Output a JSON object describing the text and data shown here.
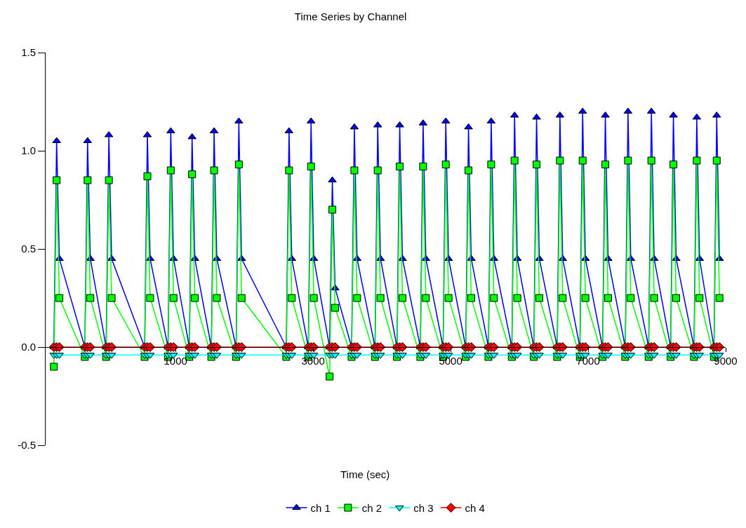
{
  "chart_data": {
    "type": "line",
    "title": "Time Series by Channel",
    "xlabel": "Time (sec)",
    "x": [
      -770,
      -730,
      -690,
      -320,
      -280,
      -240,
      -10,
      30,
      70,
      550,
      590,
      630,
      890,
      930,
      970,
      1200,
      1240,
      1280,
      1520,
      1560,
      1600,
      1880,
      1920,
      1960,
      2610,
      2650,
      2690,
      2930,
      2970,
      3010,
      3240,
      3280,
      3320,
      3560,
      3600,
      3640,
      3900,
      3940,
      3980,
      4220,
      4260,
      4300,
      4560,
      4600,
      4640,
      4890,
      4930,
      4970,
      5220,
      5260,
      5300,
      5550,
      5590,
      5630,
      5890,
      5930,
      5970,
      6210,
      6250,
      6290,
      6550,
      6590,
      6630,
      6880,
      6920,
      6960,
      7210,
      7250,
      7290,
      7540,
      7580,
      7620,
      7880,
      7920,
      7960,
      8200,
      8240,
      8280,
      8540,
      8580,
      8620,
      8830,
      8870,
      8910
    ],
    "series": [
      {
        "name": "ch 1",
        "color": "#0000ff",
        "marker": "triangle",
        "values": [
          0,
          1.05,
          0.45,
          0,
          1.05,
          0.45,
          0,
          1.08,
          0.45,
          0,
          1.08,
          0.45,
          0,
          1.1,
          0.45,
          0,
          1.07,
          0.45,
          0,
          1.1,
          0.45,
          0,
          1.15,
          0.45,
          0,
          1.1,
          0.45,
          0,
          1.15,
          0.45,
          0,
          0.85,
          0.3,
          0,
          1.12,
          0.45,
          0,
          1.13,
          0.45,
          0,
          1.13,
          0.45,
          0,
          1.14,
          0.45,
          0,
          1.15,
          0.45,
          0,
          1.12,
          0.45,
          0,
          1.15,
          0.45,
          0,
          1.18,
          0.45,
          0,
          1.17,
          0.45,
          0,
          1.18,
          0.45,
          0,
          1.2,
          0.45,
          0,
          1.18,
          0.45,
          0,
          1.2,
          0.45,
          0,
          1.2,
          0.45,
          0,
          1.18,
          0.45,
          0,
          1.17,
          0.45,
          0,
          1.18,
          0.45
        ]
      },
      {
        "name": "ch 2",
        "color": "#00ff00",
        "marker": "square",
        "values": [
          -0.1,
          0.85,
          0.25,
          -0.05,
          0.85,
          0.25,
          -0.05,
          0.85,
          0.25,
          -0.05,
          0.87,
          0.25,
          -0.05,
          0.9,
          0.25,
          -0.05,
          0.88,
          0.25,
          -0.05,
          0.9,
          0.25,
          -0.05,
          0.93,
          0.25,
          -0.05,
          0.9,
          0.25,
          -0.05,
          0.92,
          0.25,
          -0.15,
          0.7,
          0.2,
          -0.05,
          0.9,
          0.25,
          -0.05,
          0.9,
          0.25,
          -0.05,
          0.92,
          0.25,
          -0.05,
          0.92,
          0.25,
          -0.05,
          0.93,
          0.25,
          -0.05,
          0.9,
          0.25,
          -0.05,
          0.93,
          0.25,
          -0.05,
          0.95,
          0.25,
          -0.05,
          0.93,
          0.25,
          -0.05,
          0.95,
          0.25,
          -0.05,
          0.95,
          0.25,
          -0.05,
          0.93,
          0.25,
          -0.05,
          0.95,
          0.25,
          -0.05,
          0.95,
          0.25,
          -0.05,
          0.93,
          0.25,
          -0.05,
          0.95,
          0.25,
          -0.05,
          0.95,
          0.25
        ]
      },
      {
        "name": "ch 3",
        "color": "#00ffff",
        "marker": "triangle-down",
        "values": [
          -0.04,
          -0.04,
          -0.04,
          -0.04,
          -0.04,
          -0.04,
          -0.04,
          -0.04,
          -0.04,
          -0.04,
          -0.04,
          -0.04,
          -0.04,
          -0.04,
          -0.04,
          -0.04,
          -0.04,
          -0.04,
          -0.04,
          -0.04,
          -0.04,
          -0.04,
          -0.04,
          -0.04,
          -0.04,
          -0.04,
          -0.04,
          -0.04,
          -0.04,
          -0.04,
          -0.04,
          -0.04,
          -0.04,
          -0.04,
          -0.04,
          -0.04,
          -0.04,
          -0.04,
          -0.04,
          -0.04,
          -0.04,
          -0.04,
          -0.04,
          -0.04,
          -0.04,
          -0.04,
          -0.04,
          -0.04,
          -0.04,
          -0.04,
          -0.04,
          -0.04,
          -0.04,
          -0.04,
          -0.04,
          -0.04,
          -0.04,
          -0.04,
          -0.04,
          -0.04,
          -0.04,
          -0.04,
          -0.04,
          -0.04,
          -0.04,
          -0.04,
          -0.04,
          -0.04,
          -0.04,
          -0.04,
          -0.04,
          -0.04,
          -0.04,
          -0.04,
          -0.04,
          -0.04,
          -0.04,
          -0.04,
          -0.04,
          -0.04,
          -0.04,
          -0.04,
          -0.04,
          -0.04
        ]
      },
      {
        "name": "ch 4",
        "color": "#ff0000",
        "marker": "diamond",
        "values": [
          0,
          0,
          0,
          0,
          0,
          0,
          0,
          0,
          0,
          0,
          0,
          0,
          0,
          0,
          0,
          0,
          0,
          0,
          0,
          0,
          0,
          0,
          0,
          0,
          0,
          0,
          0,
          0,
          0,
          0,
          0,
          0,
          0,
          0,
          0,
          0,
          0,
          0,
          0,
          0,
          0,
          0,
          0,
          0,
          0,
          0,
          0,
          0,
          0,
          0,
          0,
          0,
          0,
          0,
          0,
          0,
          0,
          0,
          0,
          0,
          0,
          0,
          0,
          0,
          0,
          0,
          0,
          0,
          0,
          0,
          0,
          0,
          0,
          0,
          0,
          0,
          0,
          0,
          0,
          0,
          0,
          0,
          0,
          0
        ]
      }
    ],
    "xlim": [
      -890,
      9000
    ],
    "xticks": [
      1000,
      3000,
      5000,
      7000,
      9000
    ],
    "ylim": [
      -0.5,
      1.5
    ],
    "yticks": [
      {
        "value": -0.5,
        "label": "-0.5"
      },
      {
        "value": 0,
        "label": "0.0"
      },
      {
        "value": 0.5,
        "label": "0.5"
      },
      {
        "value": 1,
        "label": "1.0"
      },
      {
        "value": 1.5,
        "label": "1.5"
      }
    ],
    "legend": "bottom",
    "line_style": "solid"
  }
}
